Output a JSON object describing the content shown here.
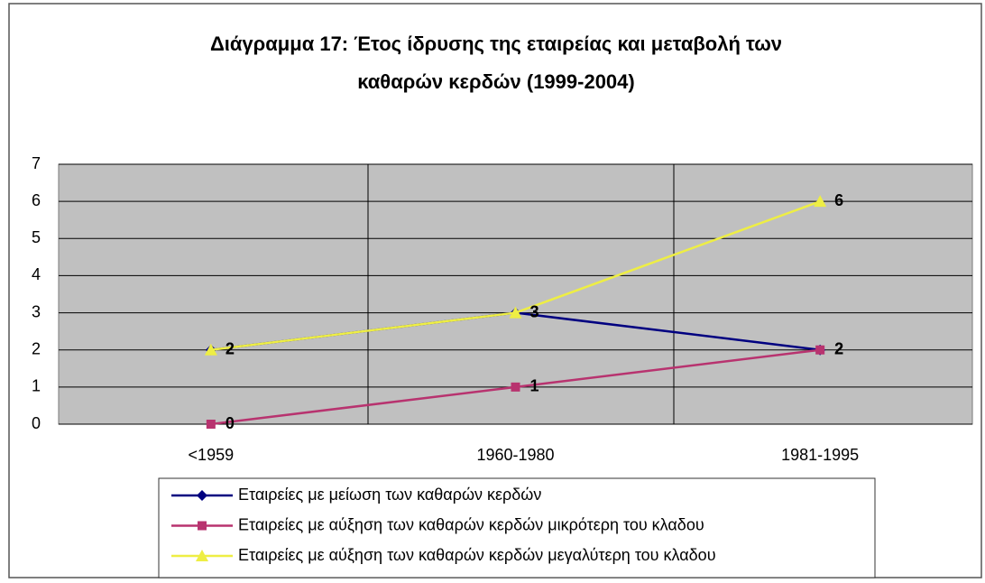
{
  "chart_data": {
    "type": "line",
    "title": "Διάγραμμα 17: Έτος ίδρυσης της εταιρείας και μεταβολή των",
    "subtitle": "καθαρών κερδών (1999-2004)",
    "categories": [
      "<1959",
      "1960-1980",
      "1981-1995"
    ],
    "series": [
      {
        "name": "Εταιρείες με μείωση των καθαρών κερδών",
        "color": "#000080",
        "marker": "diamond",
        "values": [
          2,
          3,
          2
        ]
      },
      {
        "name": "Εταιρείες με αύξηση των καθαρών κερδών μικρότερη του κλαδου",
        "color": "#b8336f",
        "marker": "square",
        "values": [
          0,
          1,
          2
        ]
      },
      {
        "name": "Εταιρείες με αύξηση των καθαρών κερδών μεγαλύτερη του κλαδου",
        "color": "#eeee44",
        "marker": "triangle",
        "values": [
          2,
          3,
          6
        ]
      }
    ],
    "ylim": [
      0,
      7
    ],
    "yticks": [
      0,
      1,
      2,
      3,
      4,
      5,
      6,
      7
    ],
    "grid": true,
    "legend": "bottom"
  }
}
